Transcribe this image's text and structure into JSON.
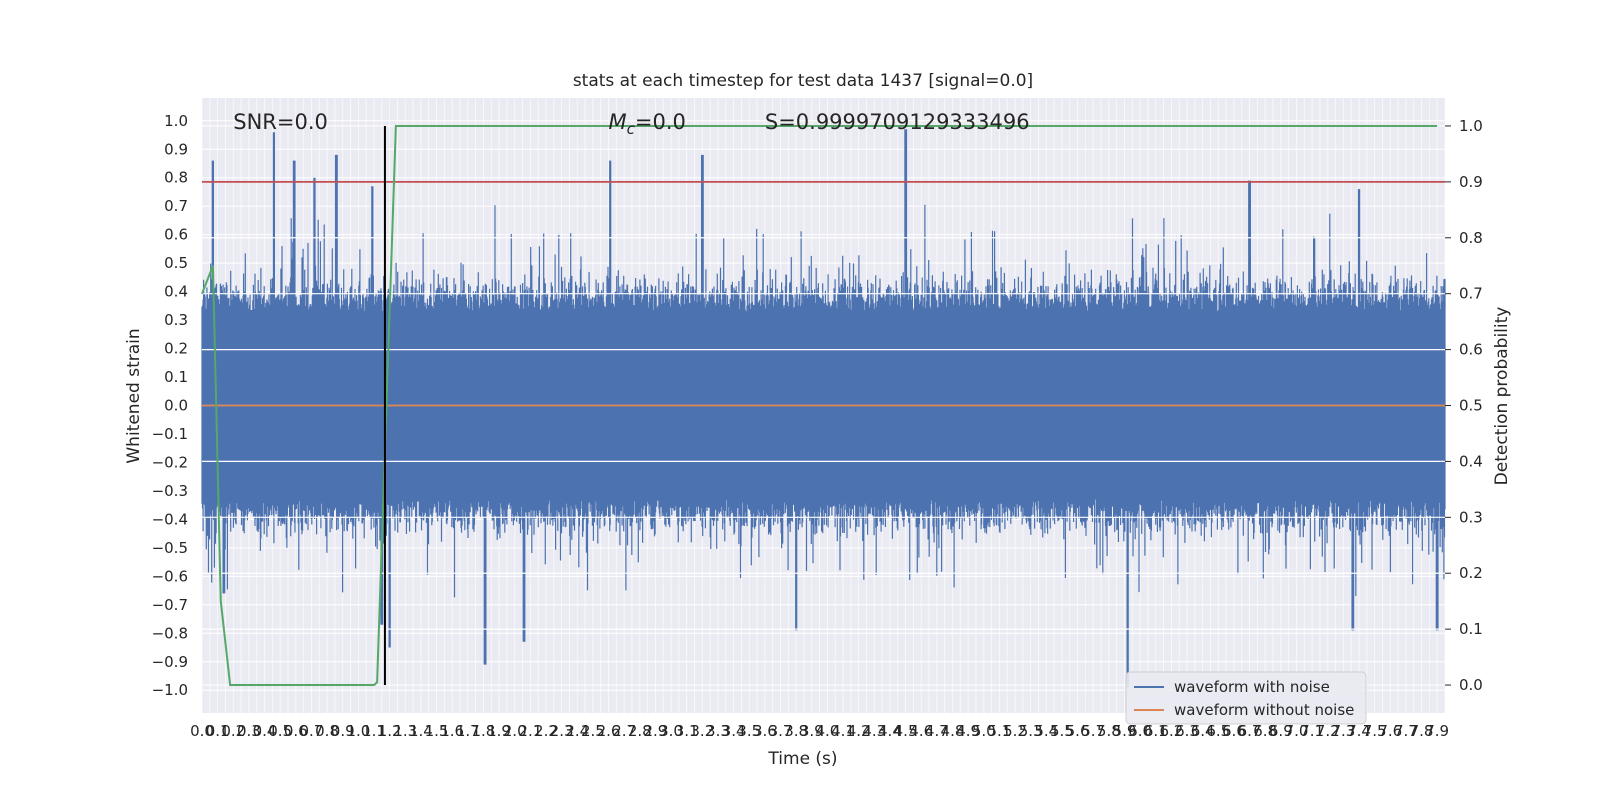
{
  "chart_data": {
    "type": "line",
    "title": "stats at each timestep for test data 1437 [signal=0.0]",
    "xlabel": "Time (s)",
    "ylabel": "Whitened strain",
    "y2label": "Detection probability",
    "xlim": [
      0.0,
      7.95
    ],
    "ylim": [
      -1.08,
      1.08
    ],
    "y2lim": [
      -0.05,
      1.05
    ],
    "xticks": [
      0.0,
      0.1,
      0.2,
      0.3,
      0.4,
      0.5,
      0.6,
      0.7,
      0.8,
      0.9,
      1.0,
      1.1,
      1.2,
      1.3,
      1.4,
      1.5,
      1.6,
      1.7,
      1.8,
      1.9,
      2.0,
      2.1,
      2.2,
      2.3,
      2.4,
      2.5,
      2.6,
      2.7,
      2.8,
      2.9,
      3.0,
      3.1,
      3.2,
      3.3,
      3.4,
      3.5,
      3.6,
      3.7,
      3.8,
      3.9,
      4.0,
      4.1,
      4.2,
      4.3,
      4.4,
      4.5,
      4.6,
      4.7,
      4.8,
      4.9,
      5.0,
      5.1,
      5.2,
      5.3,
      5.4,
      5.5,
      5.6,
      5.7,
      5.8,
      5.9,
      6.0,
      6.1,
      6.2,
      6.3,
      6.4,
      6.5,
      6.6,
      6.7,
      6.8,
      6.9,
      7.0,
      7.1,
      7.2,
      7.3,
      7.4,
      7.5,
      7.6,
      7.7,
      7.8,
      7.9
    ],
    "xtick_labels": [
      "0.0",
      "0.1",
      "0.2",
      "0.3",
      "0.4",
      "0.5",
      "0.6",
      "0.7",
      "0.8",
      "0.9",
      "1.0",
      "1.1",
      "1.2",
      "1.3",
      "1.4",
      "1.5",
      "1.6",
      "1.7",
      "1.8",
      "1.9",
      "2.0",
      "2.1",
      "2.2",
      "2.3",
      "2.4",
      "2.5",
      "2.6",
      "2.7",
      "2.8",
      "2.9",
      "3.0",
      "3.1",
      "3.2",
      "3.3",
      "3.4",
      "3.5",
      "3.6",
      "3.7",
      "3.8",
      "3.9",
      "4.0",
      "4.1",
      "4.2",
      "4.3",
      "4.4",
      "4.5",
      "4.6",
      "4.7",
      "4.8",
      "4.9",
      "5.0",
      "5.1",
      "5.2",
      "5.3",
      "5.4",
      "5.5",
      "5.6",
      "5.7",
      "5.8",
      "5.9",
      "6.0",
      "6.1",
      "6.2",
      "6.3",
      "6.4",
      "6.5",
      "6.6",
      "6.7",
      "6.8",
      "6.9",
      "7.0",
      "7.1",
      "7.2",
      "7.3",
      "7.4",
      "7.5",
      "7.6",
      "7.7",
      "7.8",
      "7.9"
    ],
    "yticks": [
      1.0,
      0.9,
      0.8,
      0.7,
      0.6,
      0.5,
      0.4,
      0.3,
      0.2,
      0.1,
      0.0,
      -0.1,
      -0.2,
      -0.3,
      -0.4,
      -0.5,
      -0.6,
      -0.7,
      -0.8,
      -0.9,
      -1.0
    ],
    "ytick_labels": [
      "1.0",
      "0.9",
      "0.8",
      "0.7",
      "0.6",
      "0.5",
      "0.4",
      "0.3",
      "0.2",
      "0.1",
      "0.0",
      "−0.1",
      "−0.2",
      "−0.3",
      "−0.4",
      "−0.5",
      "−0.6",
      "−0.7",
      "−0.8",
      "−0.9",
      "−1.0"
    ],
    "y2ticks": [
      1.0,
      0.9,
      0.8,
      0.7,
      0.6,
      0.5,
      0.4,
      0.3,
      0.2,
      0.1,
      0.0
    ],
    "y2tick_labels": [
      "1.0",
      "0.9",
      "0.8",
      "0.7",
      "0.6",
      "0.5",
      "0.4",
      "0.3",
      "0.2",
      "0.1",
      "0.0"
    ],
    "grid": true,
    "legend_position": "lower-right",
    "annotations": [
      {
        "label": "SNR=0.0",
        "x": 0.2,
        "y": 1.0
      },
      {
        "label": "M",
        "sub": "c",
        "suffix": "=0.0",
        "x": 2.6,
        "y": 1.0
      },
      {
        "label": "S=0.9999709129333496",
        "x": 3.6,
        "y": 1.0
      }
    ],
    "series": [
      {
        "name": "waveform with noise",
        "color": "#4c72b0",
        "kind": "dense-noise",
        "envelope_hint": "symmetric noise, typical amplitude ~0.35-0.55, spikes up to ~0.97",
        "peaks": [
          {
            "x": 0.07,
            "y": 0.86
          },
          {
            "x": 0.46,
            "y": 0.96
          },
          {
            "x": 0.59,
            "y": 0.86
          },
          {
            "x": 0.72,
            "y": 0.8
          },
          {
            "x": 0.86,
            "y": 0.88
          },
          {
            "x": 1.09,
            "y": 0.77
          },
          {
            "x": 2.61,
            "y": 0.86
          },
          {
            "x": 3.2,
            "y": 0.88
          },
          {
            "x": 4.5,
            "y": 0.97
          },
          {
            "x": 6.7,
            "y": 0.79
          },
          {
            "x": 7.4,
            "y": 0.76
          }
        ],
        "troughs": [
          {
            "x": 0.14,
            "y": -0.66
          },
          {
            "x": 1.15,
            "y": -0.77
          },
          {
            "x": 1.2,
            "y": -0.85
          },
          {
            "x": 1.81,
            "y": -0.91
          },
          {
            "x": 2.06,
            "y": -0.83
          },
          {
            "x": 3.8,
            "y": -0.79
          },
          {
            "x": 5.92,
            "y": -0.99
          },
          {
            "x": 7.36,
            "y": -0.79
          },
          {
            "x": 7.9,
            "y": -0.79
          }
        ]
      },
      {
        "name": "waveform without noise",
        "color": "#dd8452",
        "x": [
          0.0,
          7.95
        ],
        "y": [
          0.0,
          0.0
        ]
      },
      {
        "name": "detection probability",
        "color": "#55a868",
        "axis": "right",
        "x": [
          0.0,
          0.07,
          0.12,
          0.18,
          1.1,
          1.12,
          1.24,
          7.9
        ],
        "y": [
          0.7,
          0.75,
          0.15,
          0.0,
          0.0,
          0.005,
          1.0,
          1.0
        ]
      }
    ],
    "threshold": {
      "color": "#c44e52",
      "axis": "right",
      "value": 0.9
    },
    "marker_line": {
      "color": "#000000",
      "x": 1.17,
      "y_from": 0.0,
      "y_to": 1.0
    }
  }
}
